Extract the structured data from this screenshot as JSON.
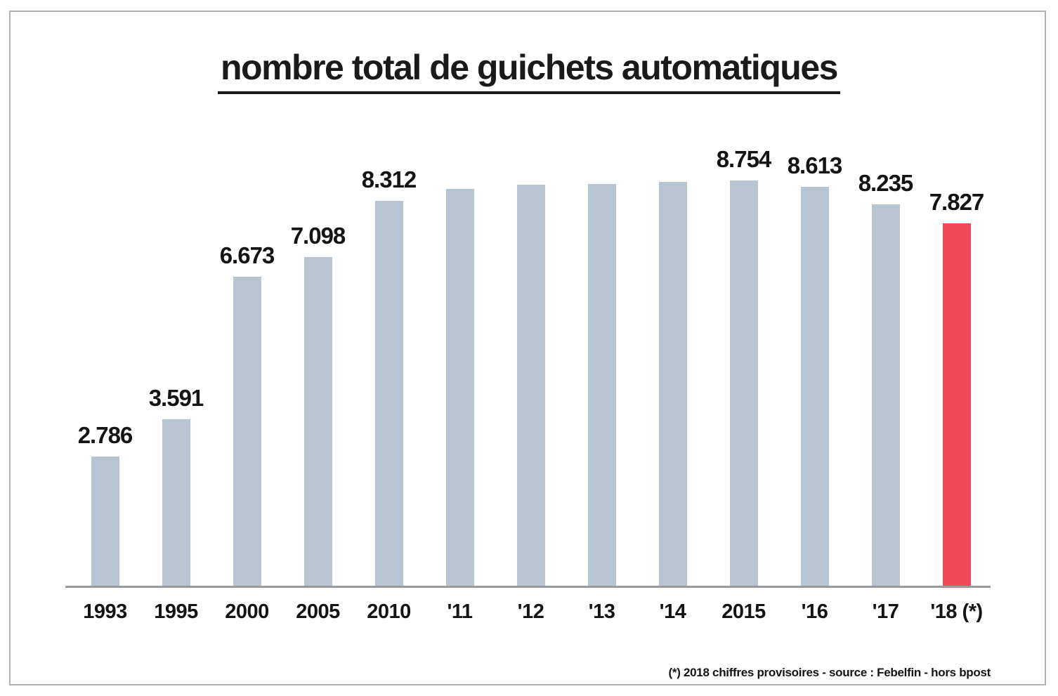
{
  "chart_data": {
    "type": "bar",
    "title": "nombre total de guichets automatiques",
    "categories": [
      "1993",
      "1995",
      "2000",
      "2005",
      "2010",
      "'11",
      "'12",
      "'13",
      "'14",
      "2015",
      "'16",
      "'17",
      "'18 (*)"
    ],
    "values": [
      2786,
      3591,
      6673,
      7098,
      8312,
      8570,
      8660,
      8680,
      8720,
      8754,
      8613,
      8235,
      7827
    ],
    "bar_value_labels": [
      "2.786",
      "3.591",
      "6.673",
      "7.098",
      "8.312",
      "",
      "",
      "",
      "",
      "8.754",
      "8.613",
      "8.235",
      "7.827"
    ],
    "estimated_unlabeled_indices": [
      5,
      6,
      7,
      8
    ],
    "highlight_index": 12,
    "ylim": [
      0,
      10000
    ],
    "grid": false,
    "legend": false,
    "xlabel": "",
    "ylabel": "",
    "colors": {
      "bar": "#b7c4d1",
      "highlight": "#f0495a",
      "axis": "#9a9a9a",
      "text": "#141414",
      "frame_border": "#b3b3b3"
    },
    "footnote": "(*) 2018 chiffres provisoires - source : Febelfin - hors bpost"
  }
}
